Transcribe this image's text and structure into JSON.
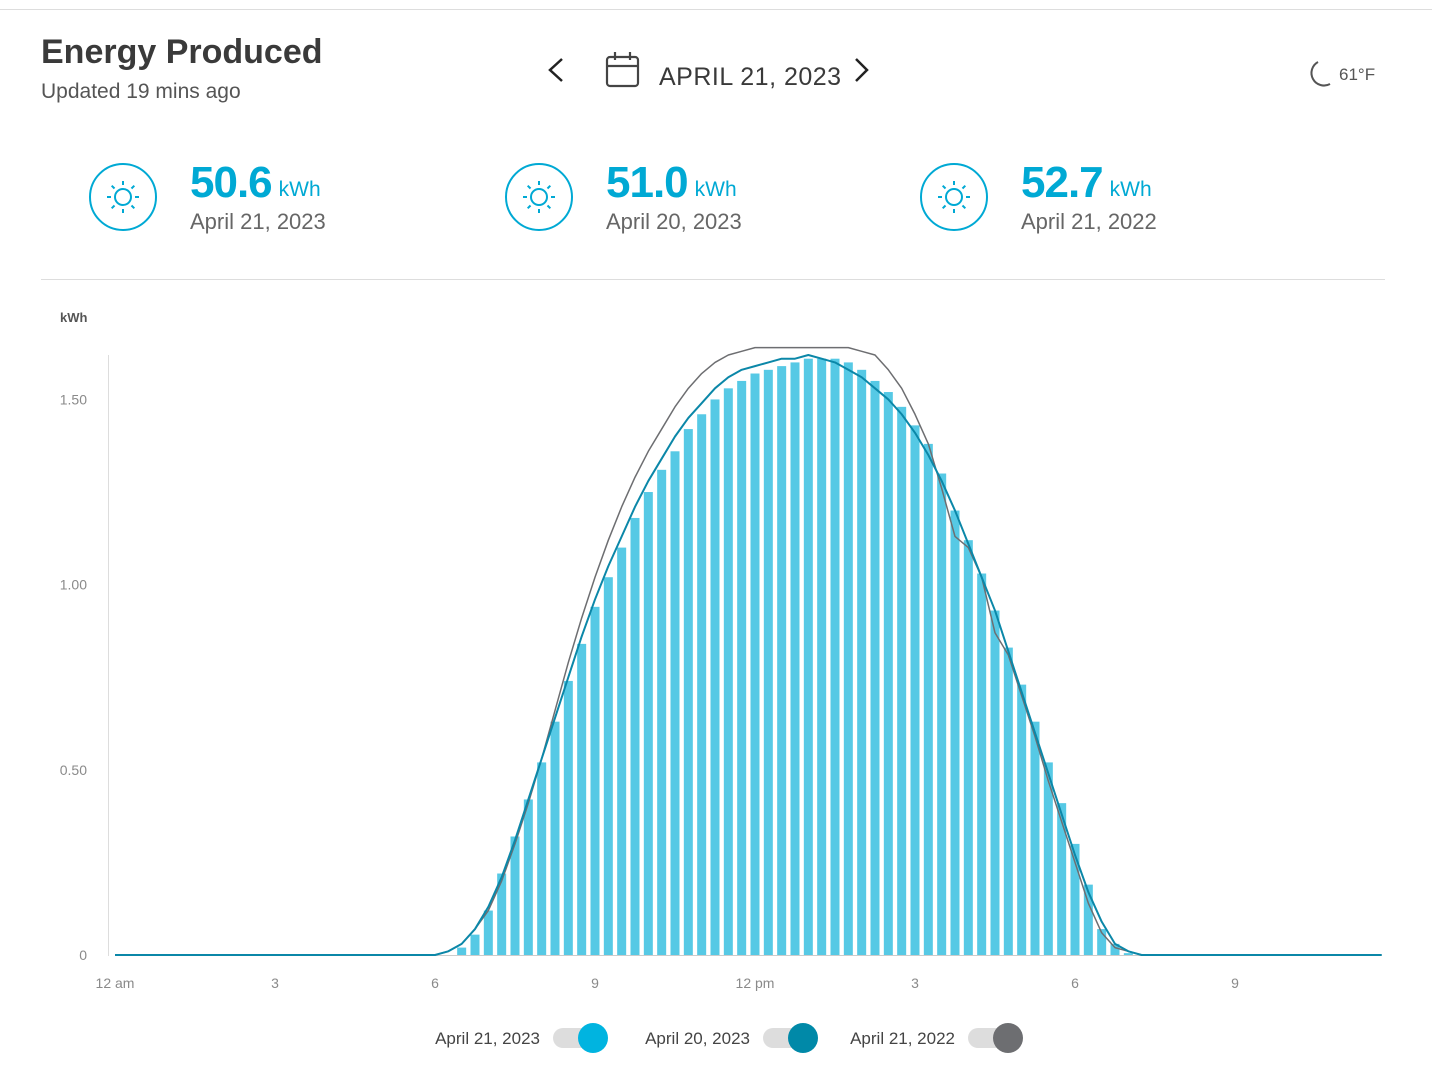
{
  "header": {
    "title": "Energy Produced",
    "subtitle": "Updated 19 mins ago",
    "date": "APRIL 21, 2023",
    "weather": "61°F"
  },
  "summary": [
    {
      "value": "50.6",
      "unit": "kWh",
      "date": "April 21, 2023"
    },
    {
      "value": "51.0",
      "unit": "kWh",
      "date": "April 20, 2023"
    },
    {
      "value": "52.7",
      "unit": "kWh",
      "date": "April 21, 2022"
    }
  ],
  "chart_data": {
    "type": "bar",
    "y_label": "kWh",
    "categories": [
      "12 am",
      null,
      null,
      null,
      null,
      null,
      null,
      null,
      null,
      null,
      null,
      null,
      "3",
      null,
      null,
      null,
      null,
      null,
      null,
      null,
      null,
      null,
      null,
      null,
      "6",
      null,
      null,
      null,
      null,
      null,
      null,
      null,
      null,
      null,
      null,
      null,
      "9",
      null,
      null,
      null,
      null,
      null,
      null,
      null,
      null,
      null,
      null,
      null,
      "12 pm",
      null,
      null,
      null,
      null,
      null,
      null,
      null,
      null,
      null,
      null,
      null,
      "3",
      null,
      null,
      null,
      null,
      null,
      null,
      null,
      null,
      null,
      null,
      null,
      "6",
      null,
      null,
      null,
      null,
      null,
      null,
      null,
      null,
      null,
      null,
      null,
      "9",
      null,
      null,
      null,
      null,
      null,
      null,
      null,
      null,
      null,
      null,
      null
    ],
    "ylim": [
      0,
      1.62
    ],
    "yticks": [
      0,
      {
        "value": 0.5,
        "label": "0.50"
      },
      {
        "value": 1,
        "label": "1.00"
      },
      {
        "value": 1.5,
        "label": "1.50"
      }
    ],
    "series": [
      {
        "name": "April 21, 2023",
        "type": "bar",
        "color": "#56c9e5",
        "toggle_color": "#00b4e0",
        "values": [
          0,
          0,
          0,
          0,
          0,
          0,
          0,
          0,
          0,
          0,
          0,
          0,
          0,
          0,
          0,
          0,
          0,
          0,
          0,
          0,
          0,
          0,
          0,
          0,
          0,
          0,
          0.02,
          0.055,
          0.12,
          0.22,
          0.32,
          0.42,
          0.52,
          0.63,
          0.74,
          0.84,
          0.94,
          1.02,
          1.1,
          1.18,
          1.25,
          1.31,
          1.36,
          1.42,
          1.46,
          1.5,
          1.53,
          1.55,
          1.57,
          1.58,
          1.59,
          1.6,
          1.61,
          1.61,
          1.61,
          1.6,
          1.58,
          1.55,
          1.52,
          1.48,
          1.43,
          1.38,
          1.3,
          1.2,
          1.12,
          1.03,
          0.93,
          0.83,
          0.73,
          0.63,
          0.52,
          0.41,
          0.3,
          0.19,
          0.07,
          0.03,
          0.005,
          0,
          0,
          0,
          0,
          0,
          0,
          0,
          0,
          0,
          0,
          0,
          0,
          0,
          0,
          0,
          0,
          0,
          0,
          0
        ]
      },
      {
        "name": "April 20, 2023",
        "type": "line",
        "color": "#0b87a8",
        "toggle_color": "#0089a8",
        "values": [
          0,
          0,
          0,
          0,
          0,
          0,
          0,
          0,
          0,
          0,
          0,
          0,
          0,
          0,
          0,
          0,
          0,
          0,
          0,
          0,
          0,
          0,
          0,
          0,
          0,
          0.01,
          0.03,
          0.07,
          0.13,
          0.21,
          0.31,
          0.42,
          0.53,
          0.64,
          0.75,
          0.86,
          0.96,
          1.05,
          1.13,
          1.21,
          1.28,
          1.34,
          1.4,
          1.45,
          1.49,
          1.53,
          1.56,
          1.58,
          1.59,
          1.6,
          1.61,
          1.61,
          1.62,
          1.61,
          1.6,
          1.58,
          1.56,
          1.53,
          1.5,
          1.46,
          1.41,
          1.35,
          1.28,
          1.2,
          1.11,
          1.02,
          0.93,
          0.82,
          0.71,
          0.6,
          0.49,
          0.38,
          0.27,
          0.17,
          0.09,
          0.03,
          0.01,
          0,
          0,
          0,
          0,
          0,
          0,
          0,
          0,
          0,
          0,
          0,
          0,
          0,
          0,
          0,
          0,
          0,
          0,
          0
        ]
      },
      {
        "name": "April 21, 2022",
        "type": "line",
        "color": "#6d6e71",
        "toggle_color": "#6d6e71",
        "values": [
          0,
          0,
          0,
          0,
          0,
          0,
          0,
          0,
          0,
          0,
          0,
          0,
          0,
          0,
          0,
          0,
          0,
          0,
          0,
          0,
          0,
          0,
          0,
          0,
          0,
          0.01,
          0.03,
          0.07,
          0.12,
          0.2,
          0.3,
          0.41,
          0.53,
          0.66,
          0.79,
          0.91,
          1.02,
          1.12,
          1.21,
          1.29,
          1.36,
          1.42,
          1.48,
          1.53,
          1.57,
          1.6,
          1.62,
          1.63,
          1.64,
          1.64,
          1.64,
          1.64,
          1.64,
          1.64,
          1.64,
          1.64,
          1.63,
          1.62,
          1.58,
          1.53,
          1.46,
          1.38,
          1.26,
          1.13,
          1.1,
          1.02,
          0.87,
          0.81,
          0.7,
          0.59,
          0.47,
          0.36,
          0.25,
          0.14,
          0.06,
          0.02,
          0.01,
          0,
          0,
          0,
          0,
          0,
          0,
          0,
          0,
          0,
          0,
          0,
          0,
          0,
          0,
          0,
          0,
          0,
          0,
          0
        ]
      }
    ]
  }
}
